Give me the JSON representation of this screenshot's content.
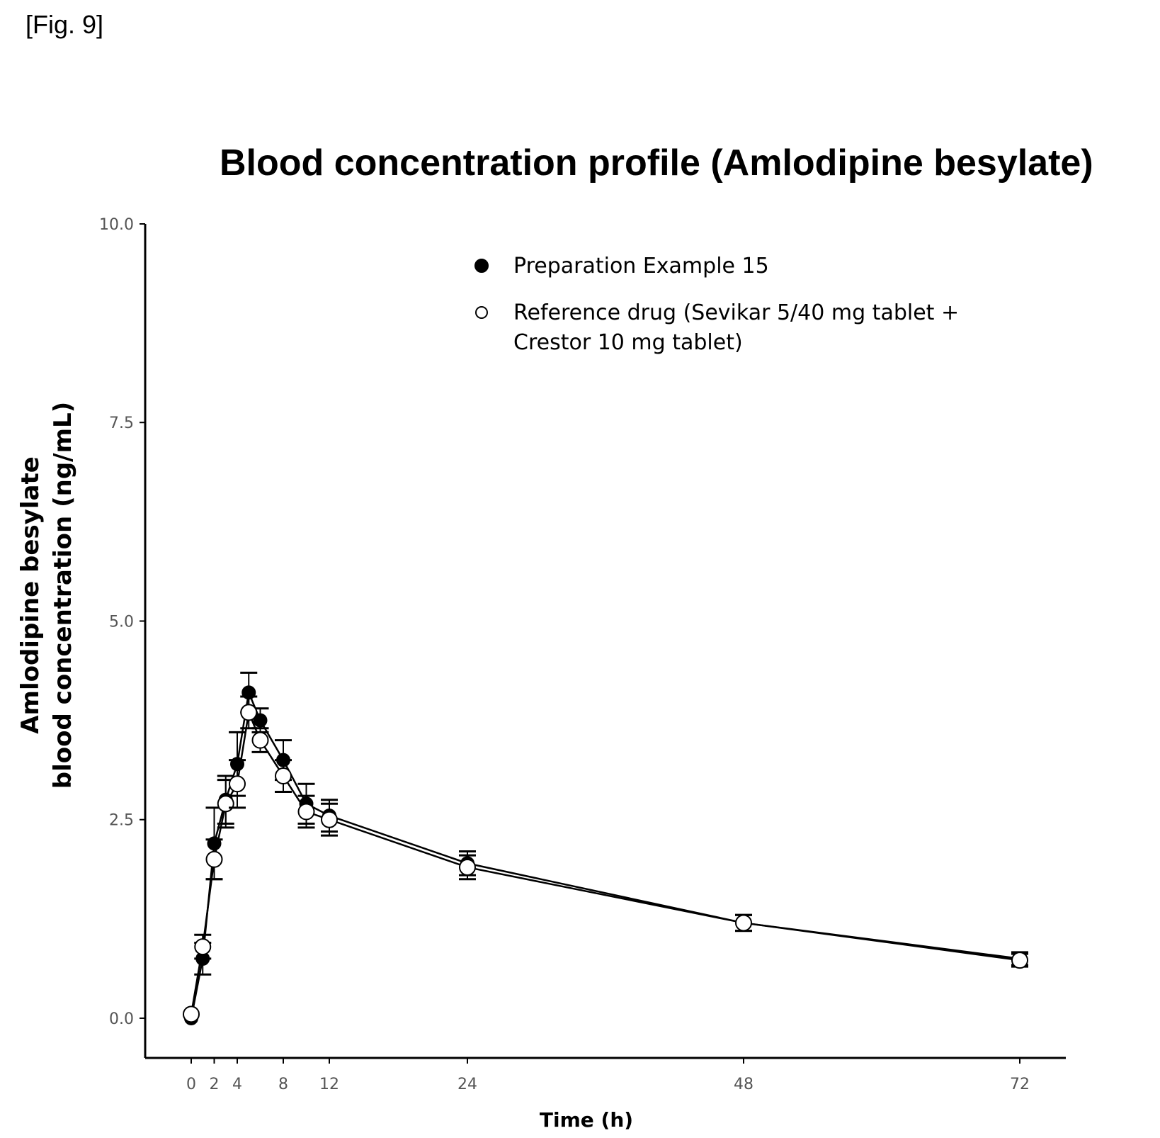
{
  "figure_label": "[Fig. 9]",
  "chart_data": {
    "type": "line",
    "title": "Blood concentration profile (Amlodipine besylate)",
    "xlabel": "Time (h)",
    "ylabel_lines": [
      "Amlodipine besylate",
      "blood concentration (ng/mL)"
    ],
    "xlim": [
      -4,
      76
    ],
    "ylim": [
      -0.5,
      10.0
    ],
    "y_ticks": [
      {
        "value": 0.0,
        "label": "0.0"
      },
      {
        "value": 2.5,
        "label": "2.5"
      },
      {
        "value": 5.0,
        "label": "5.0"
      },
      {
        "value": 7.5,
        "label": "7.5"
      },
      {
        "value": 10.0,
        "label": "10.0"
      }
    ],
    "x_ticks": [
      {
        "value": 0,
        "label": "0"
      },
      {
        "value": 2,
        "label": "2"
      },
      {
        "value": 4,
        "label": "4"
      },
      {
        "value": 8,
        "label": "8"
      },
      {
        "value": 12,
        "label": "12"
      },
      {
        "value": 24,
        "label": "24"
      },
      {
        "value": 48,
        "label": "48"
      },
      {
        "value": 72,
        "label": "72"
      }
    ],
    "series": [
      {
        "name": "Preparation Example 15",
        "marker": "filled-circle",
        "color": "#000000",
        "x": [
          0,
          1,
          2,
          3,
          4,
          5,
          6,
          8,
          10,
          12,
          24,
          48,
          72
        ],
        "y": [
          0.0,
          0.75,
          2.2,
          2.75,
          3.2,
          4.1,
          3.75,
          3.25,
          2.7,
          2.55,
          1.95,
          1.2,
          0.75
        ],
        "err": [
          0.0,
          0.2,
          0.45,
          0.3,
          0.4,
          0.25,
          0.15,
          0.25,
          0.25,
          0.2,
          0.15,
          0.1,
          0.08
        ]
      },
      {
        "name": "Reference drug (Sevikar 5/40 mg tablet + Crestor 10 mg tablet)",
        "marker": "open-circle",
        "color": "#000000",
        "x": [
          0,
          1,
          2,
          3,
          4,
          5,
          6,
          8,
          10,
          12,
          24,
          48,
          72
        ],
        "y": [
          0.05,
          0.9,
          2.0,
          2.7,
          2.95,
          3.85,
          3.5,
          3.05,
          2.6,
          2.5,
          1.9,
          1.2,
          0.73
        ],
        "err": [
          0.0,
          0.15,
          0.25,
          0.3,
          0.3,
          0.2,
          0.15,
          0.2,
          0.2,
          0.2,
          0.15,
          0.1,
          0.08
        ]
      }
    ],
    "legend": {
      "position": "top-right",
      "entries": [
        {
          "marker": "filled-circle",
          "lines": [
            "Preparation Example 15"
          ]
        },
        {
          "marker": "open-circle",
          "lines": [
            "Reference drug (Sevikar 5/40 mg tablet +",
            "Crestor 10 mg tablet)"
          ]
        }
      ]
    },
    "grid": false
  }
}
